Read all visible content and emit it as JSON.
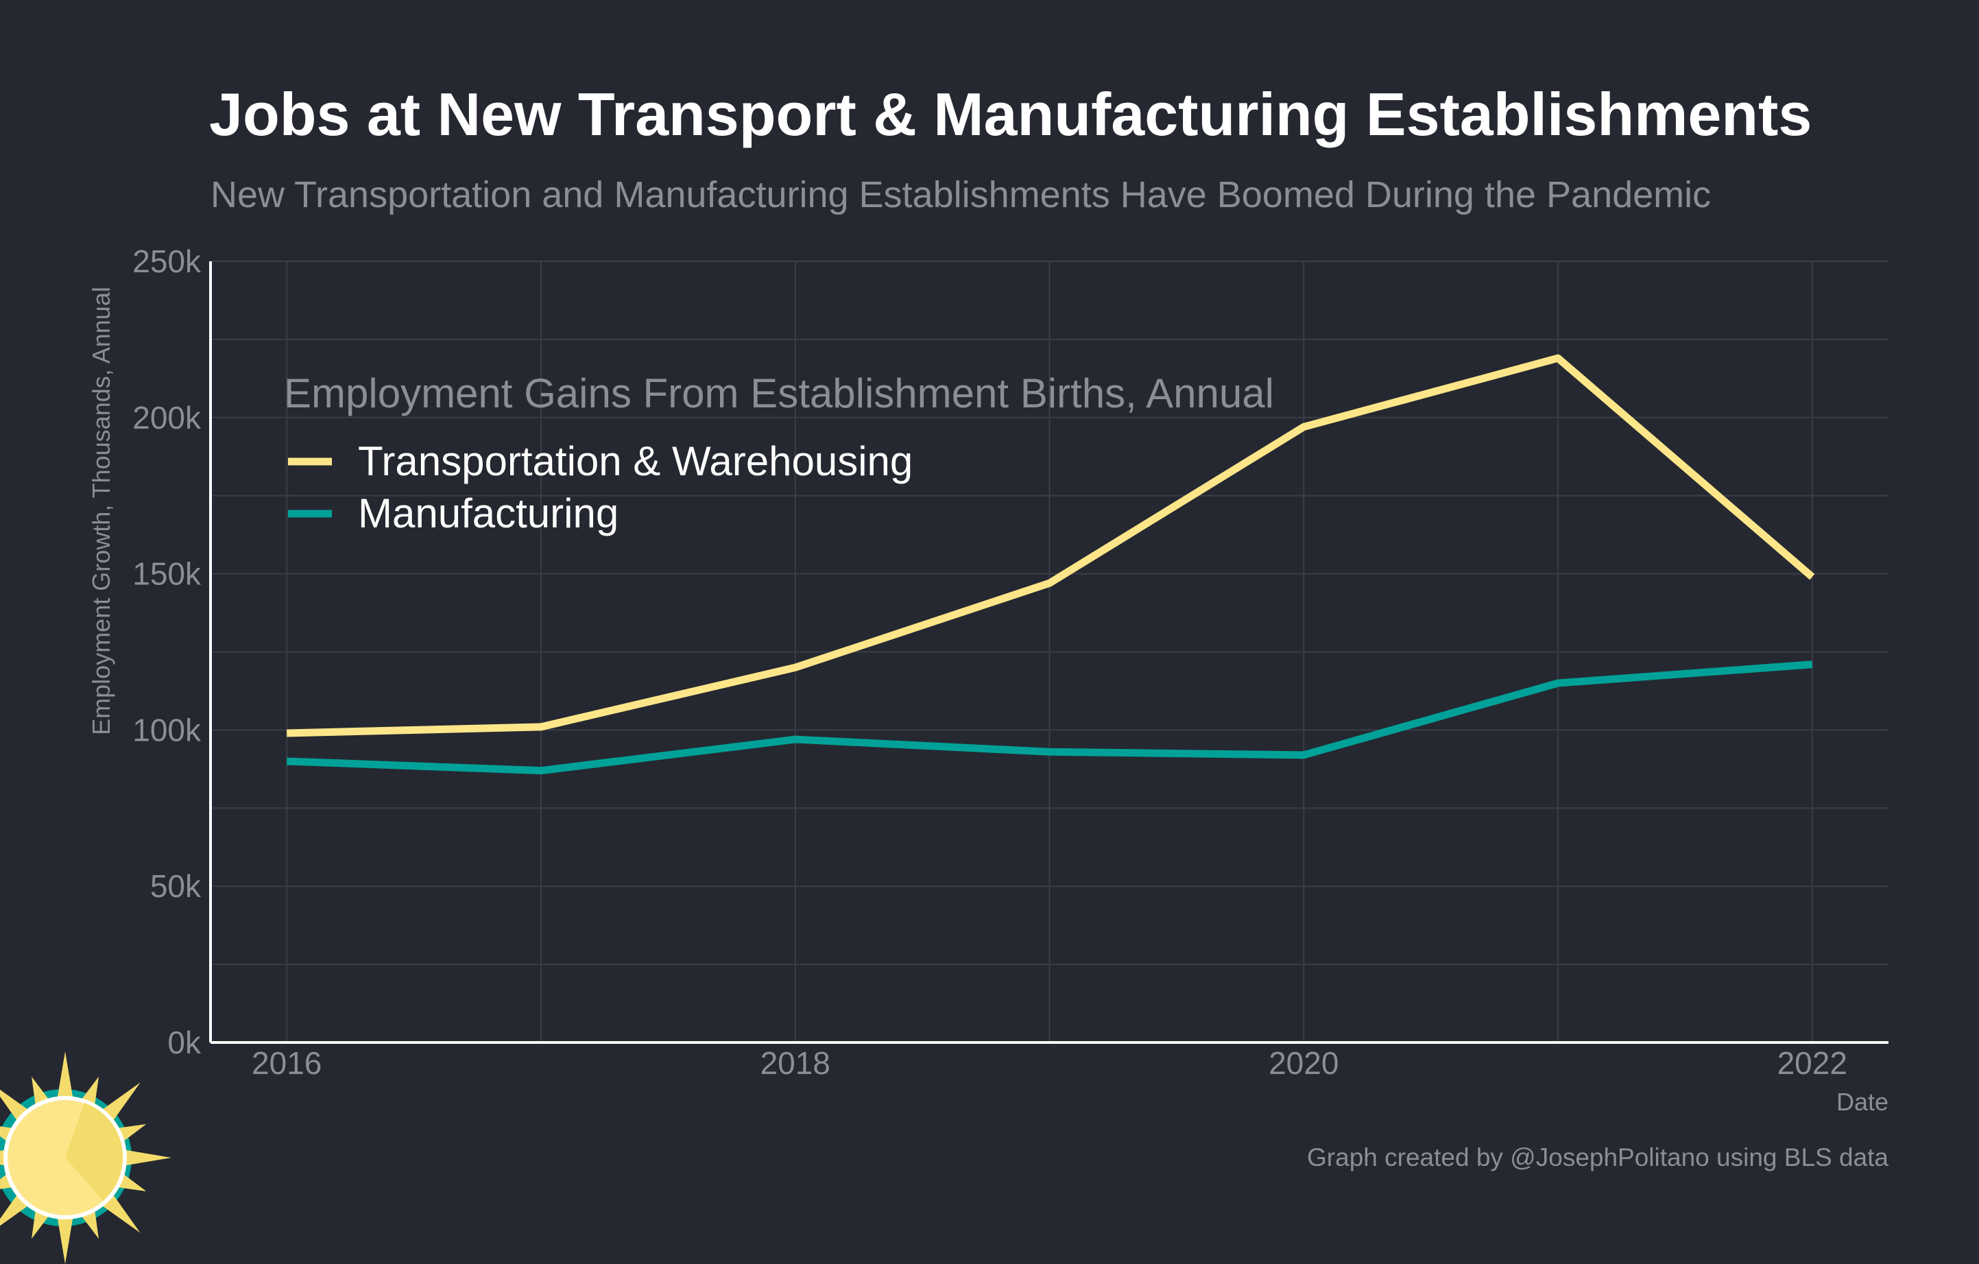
{
  "title": "Jobs at New Transport & Manufacturing Establishments",
  "subtitle": "New Transportation and Manufacturing Establishments Have Boomed During the Pandemic",
  "caption": "Graph created by @JosephPolitano using BLS data",
  "colors": {
    "background": "#252830",
    "transportation": "#fde68a",
    "manufacturing": "#00a199",
    "axis": "#ffffff",
    "muted_text": "#8b8e94"
  },
  "logo": {
    "name": "sun-logo",
    "label": "sun logo"
  },
  "chart_data": {
    "type": "line",
    "title": "Jobs at New Transport & Manufacturing Establishments",
    "xlabel": "Date",
    "ylabel": "Employment Growth, Thousands, Annual",
    "x": [
      2016,
      2017,
      2018,
      2019,
      2020,
      2021,
      2022
    ],
    "xlim": [
      2015.7,
      2022.3
    ],
    "ylim": [
      0,
      250
    ],
    "x_ticks": [
      2016,
      2018,
      2020,
      2022
    ],
    "x_tick_labels": [
      "2016",
      "2018",
      "2020",
      "2022"
    ],
    "y_ticks": [
      0,
      50,
      100,
      150,
      200,
      250
    ],
    "y_tick_labels": [
      "0k",
      "50k",
      "100k",
      "150k",
      "200k",
      "250k"
    ],
    "grid": true,
    "legend": {
      "title": "Employment Gains From Establishment Births, Annual",
      "position": "top-left"
    },
    "series": [
      {
        "name": "Transportation & Warehousing",
        "color": "#fde68a",
        "values": [
          99,
          101,
          120,
          147,
          197,
          219,
          149
        ]
      },
      {
        "name": "Manufacturing",
        "color": "#00a199",
        "values": [
          90,
          87,
          97,
          93,
          92,
          115,
          121
        ]
      }
    ]
  }
}
